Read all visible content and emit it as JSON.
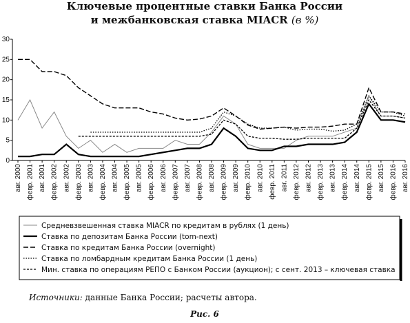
{
  "chart_data": {
    "type": "line",
    "title": [
      "Ключевые процентные ставки Банка России",
      "и межбанковская ставка MIACR",
      "(в %)"
    ],
    "categories": [
      "авг. 2000",
      "февр. 2001",
      "авг. 2001",
      "февр. 2002",
      "авг. 2002",
      "февр. 2003",
      "авг. 2003",
      "февр. 2004",
      "авг. 2004",
      "февр. 2005",
      "авг. 2005",
      "февр. 2006",
      "авг. 2006",
      "февр. 2007",
      "авг. 2007",
      "февр. 2008",
      "авг. 2008",
      "февр. 2009",
      "авг. 2009",
      "февр. 2010",
      "авг. 2010",
      "февр. 2011",
      "авг. 2011",
      "февр. 2012",
      "авг. 2012",
      "февр. 2013",
      "авг. 2013",
      "февр. 2014",
      "авг. 2014",
      "февр. 2015",
      "авг. 2015",
      "февр. 2016",
      "авг. 2016"
    ],
    "series": [
      {
        "name": "Средневзвешенная ставка MIACR по кредитам в рублях (1 день)",
        "color": "#8a8a8a",
        "values": [
          10,
          15,
          8,
          12,
          6,
          3,
          5,
          2,
          4,
          2,
          3,
          3,
          3,
          5,
          4,
          4,
          7,
          11,
          9,
          4,
          3,
          3,
          3,
          5,
          6,
          6,
          6,
          7,
          8,
          16,
          11,
          11,
          10.5
        ]
      },
      {
        "name": "Ставка по депозитам Банка России (tom-next)",
        "color": "#000000",
        "values": [
          1,
          1,
          1.5,
          1.5,
          4,
          1.5,
          1,
          1,
          1,
          1,
          1,
          1.5,
          2,
          2.5,
          3,
          3,
          4,
          8,
          6,
          3,
          2.5,
          2.5,
          3.5,
          3.5,
          4,
          4,
          4,
          4.5,
          7,
          14,
          10,
          10,
          9.5
        ]
      },
      {
        "name": "Ставка по кредитам Банка России (overnight)",
        "color": "#000000",
        "values": [
          25,
          25,
          22,
          22,
          21,
          18,
          16,
          14,
          13,
          13,
          13,
          12,
          11.5,
          10.5,
          10,
          10.25,
          11,
          13,
          11,
          8.75,
          7.75,
          8,
          8.25,
          8,
          8.25,
          8.25,
          8.5,
          9,
          9,
          18,
          12,
          12,
          11.5
        ]
      },
      {
        "name": "Ставка по ломбардным кредитам Банка России  (1 день)",
        "color": "#000000",
        "values": [
          null,
          null,
          null,
          null,
          null,
          null,
          7,
          7,
          7,
          7,
          7,
          7,
          7,
          7,
          7,
          7,
          8,
          12,
          11,
          9,
          8,
          8,
          8.25,
          7.5,
          7.75,
          7.75,
          7.25,
          7.5,
          9,
          16,
          12,
          12,
          11
        ]
      },
      {
        "name": "Мин. ставка по операциям РЕПО с Банком России (аукцион); с сент. 2013 – ключевая ставка",
        "color": "#000000",
        "values": [
          null,
          null,
          null,
          null,
          null,
          6,
          6,
          6,
          6,
          6,
          6,
          6,
          6,
          6,
          6,
          6,
          6.5,
          10,
          9,
          6,
          5.5,
          5.5,
          5.25,
          5.25,
          5.5,
          5.5,
          5.5,
          5.5,
          8,
          15,
          11,
          11,
          10.5
        ]
      }
    ],
    "ylim": [
      0,
      30
    ],
    "yticks": [
      0,
      5,
      10,
      15,
      20,
      25,
      30
    ],
    "grid": false,
    "source": [
      "Источники:",
      "данные Банка России; расчеты автора."
    ],
    "caption": "Рис. 6"
  }
}
